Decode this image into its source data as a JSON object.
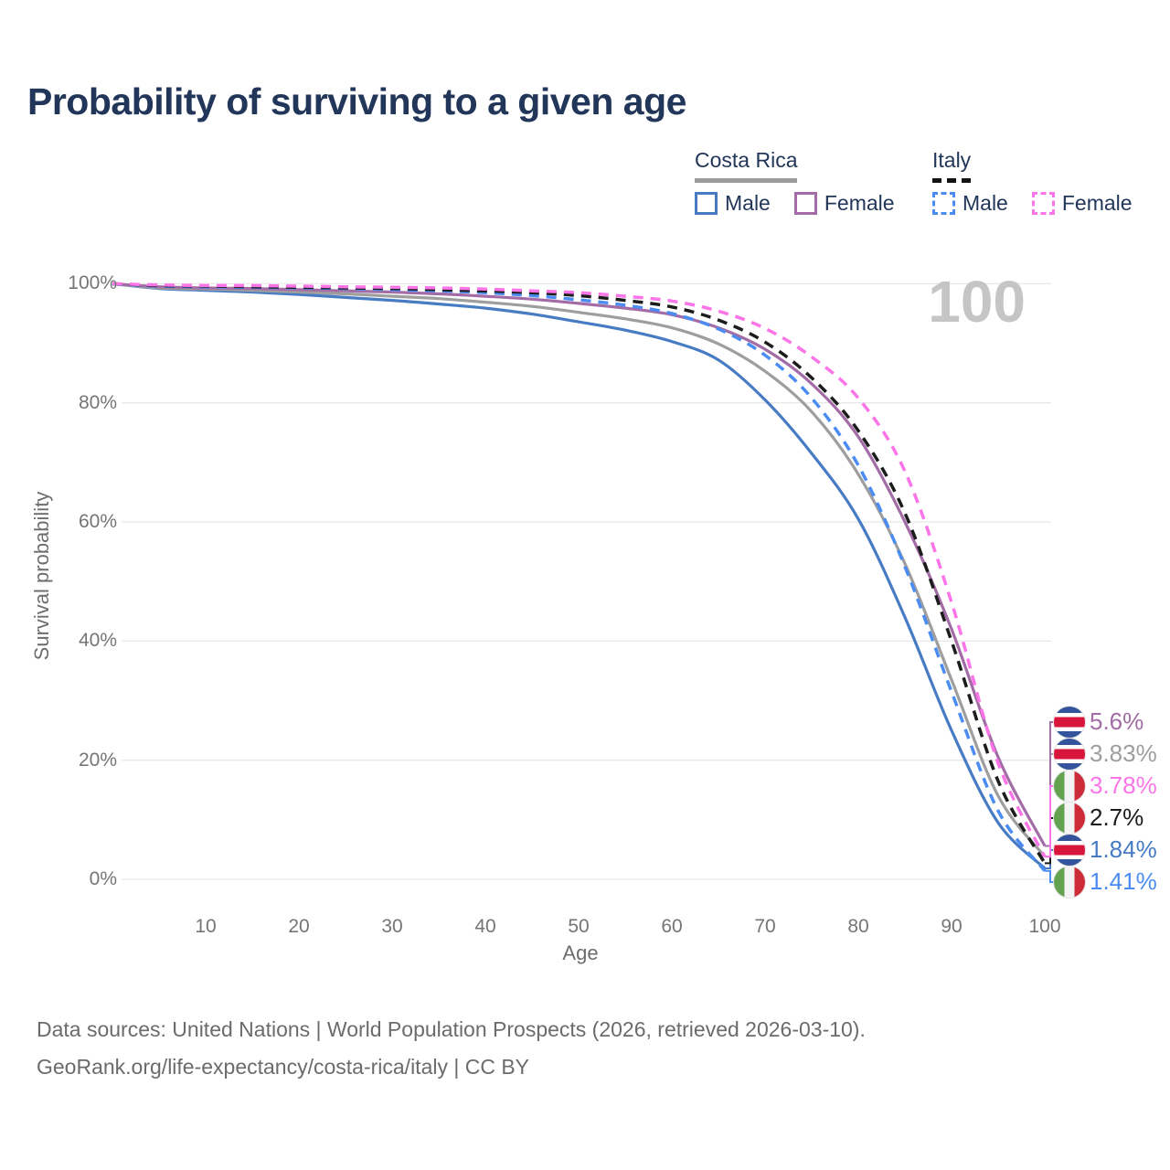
{
  "title": "Probability of surviving to a given age",
  "watermark": "100",
  "legend": {
    "groups": [
      {
        "country": "Costa Rica",
        "style": "solid",
        "items": [
          {
            "label": "Male",
            "color": "#477bc4"
          },
          {
            "label": "Female",
            "color": "#a36ca6"
          }
        ]
      },
      {
        "country": "Italy",
        "style": "dashed",
        "items": [
          {
            "label": "Male",
            "color": "#4b8cf2"
          },
          {
            "label": "Female",
            "color": "#fb74e8"
          }
        ]
      }
    ]
  },
  "chart_data": {
    "type": "line",
    "title": "Probability of surviving to a given age",
    "xlabel": "Age",
    "ylabel": "Survival probability",
    "xlim": [
      0,
      100
    ],
    "ylim": [
      0,
      100
    ],
    "grid": "horizontal",
    "x_ticks": [
      10,
      20,
      30,
      40,
      50,
      60,
      70,
      80,
      90,
      100
    ],
    "x_tick_labels": [
      "10",
      "20",
      "30",
      "40",
      "50",
      "60",
      "70",
      "80",
      "90",
      "100"
    ],
    "y_ticks": [
      0,
      20,
      40,
      60,
      80,
      100
    ],
    "y_tick_labels": [
      "0%",
      "20%",
      "40%",
      "60%",
      "80%",
      "100%"
    ],
    "ages": [
      0,
      5,
      10,
      15,
      20,
      25,
      30,
      35,
      40,
      45,
      50,
      55,
      60,
      65,
      70,
      75,
      80,
      85,
      90,
      95,
      100
    ],
    "series": [
      {
        "name": "Costa Rica Male",
        "country": "costa-rica",
        "sex": "male",
        "color": "#477bc4",
        "dashed": false,
        "end_label": "1.84%",
        "label_row": 4,
        "values": [
          100,
          99.2,
          98.9,
          98.6,
          98.2,
          97.7,
          97.2,
          96.6,
          95.9,
          94.9,
          93.6,
          92.2,
          90.3,
          87.2,
          80.5,
          71.5,
          60.5,
          44.0,
          25.0,
          9.5,
          1.84
        ]
      },
      {
        "name": "Costa Rica (both sexes)",
        "country": "costa-rica",
        "sex": "all",
        "color": "#9e9e9e",
        "dashed": false,
        "end_label": "3.83%",
        "label_row": 1,
        "values": [
          100,
          99.3,
          99.1,
          98.9,
          98.6,
          98.3,
          97.9,
          97.5,
          96.9,
          96.2,
          95.2,
          94.1,
          92.6,
          89.9,
          85.3,
          78.5,
          68.0,
          53.0,
          33.5,
          14.0,
          3.83
        ]
      },
      {
        "name": "Costa Rica Female",
        "country": "costa-rica",
        "sex": "female",
        "color": "#a36ca6",
        "dashed": false,
        "end_label": "5.6%",
        "label_row": 0,
        "values": [
          100,
          99.5,
          99.3,
          99.2,
          99.0,
          98.8,
          98.6,
          98.3,
          97.9,
          97.4,
          96.7,
          95.9,
          94.8,
          92.6,
          89.0,
          83.2,
          74.3,
          60.0,
          42.0,
          20.5,
          5.6
        ]
      },
      {
        "name": "Italy Male",
        "country": "italy",
        "sex": "male",
        "color": "#4b8cf2",
        "dashed": true,
        "end_label": "1.41%",
        "label_row": 5,
        "values": [
          100,
          99.6,
          99.5,
          99.4,
          99.3,
          99.2,
          99.0,
          98.8,
          98.5,
          98.0,
          97.3,
          96.4,
          95.0,
          92.4,
          88.0,
          80.8,
          69.5,
          52.5,
          31.5,
          11.5,
          1.41
        ]
      },
      {
        "name": "Italy (both sexes)",
        "country": "italy",
        "sex": "all",
        "color": "#1c1c1c",
        "dashed": true,
        "end_label": "2.7%",
        "label_row": 3,
        "values": [
          100,
          99.7,
          99.6,
          99.5,
          99.4,
          99.3,
          99.2,
          99.0,
          98.8,
          98.5,
          98.0,
          97.2,
          96.1,
          93.9,
          90.2,
          84.2,
          75.3,
          61.5,
          40.0,
          16.5,
          2.7
        ]
      },
      {
        "name": "Italy Female",
        "country": "italy",
        "sex": "female",
        "color": "#fb74e8",
        "dashed": true,
        "end_label": "3.78%",
        "label_row": 2,
        "values": [
          100,
          99.8,
          99.7,
          99.7,
          99.6,
          99.5,
          99.4,
          99.3,
          99.1,
          98.8,
          98.5,
          97.9,
          97.1,
          95.4,
          92.5,
          87.7,
          80.8,
          68.5,
          46.5,
          19.5,
          3.78
        ]
      }
    ]
  },
  "footer": {
    "line1": "Data sources: United Nations | World Population Prospects (2026, retrieved 2026-03-10).",
    "line2": "GeoRank.org/life-expectancy/costa-rica/italy | CC BY"
  }
}
